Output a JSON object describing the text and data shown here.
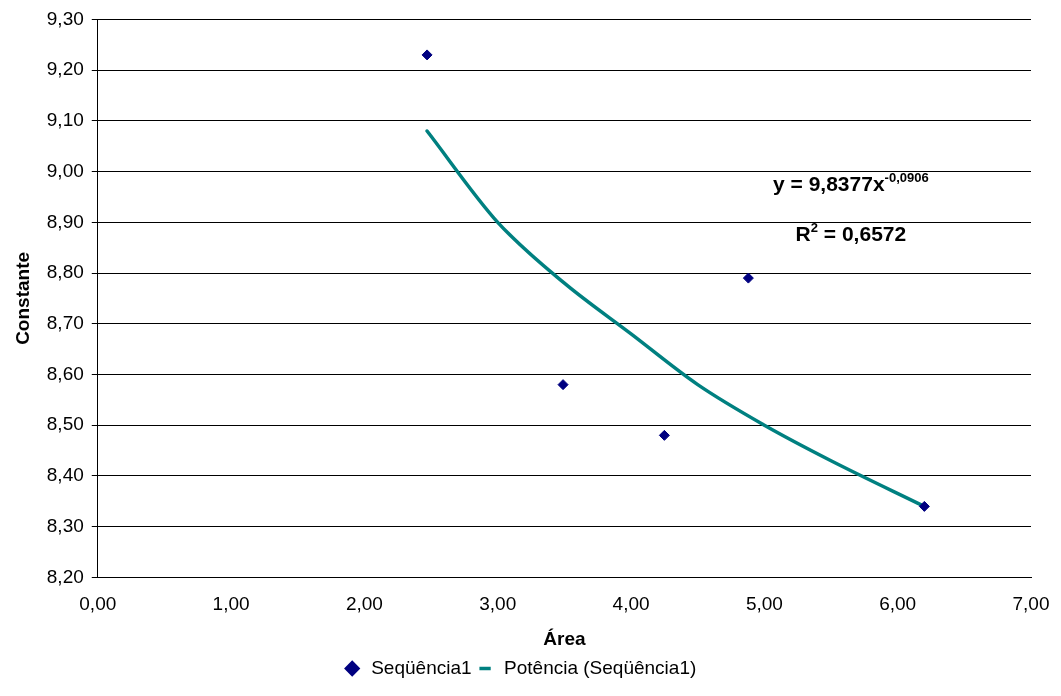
{
  "chart_data": {
    "type": "scatter",
    "xlabel": "Área",
    "ylabel": "Constante",
    "xlim": [
      0,
      7
    ],
    "ylim": [
      8.2,
      9.3
    ],
    "xticks": [
      {
        "value": 0,
        "label": "0,00"
      },
      {
        "value": 1,
        "label": "1,00"
      },
      {
        "value": 2,
        "label": "2,00"
      },
      {
        "value": 3,
        "label": "3,00"
      },
      {
        "value": 4,
        "label": "4,00"
      },
      {
        "value": 5,
        "label": "5,00"
      },
      {
        "value": 6,
        "label": "6,00"
      },
      {
        "value": 7,
        "label": "7,00"
      }
    ],
    "yticks": [
      {
        "value": 8.2,
        "label": "8,20"
      },
      {
        "value": 8.3,
        "label": "8,30"
      },
      {
        "value": 8.4,
        "label": "8,40"
      },
      {
        "value": 8.5,
        "label": "8,50"
      },
      {
        "value": 8.6,
        "label": "8,60"
      },
      {
        "value": 8.7,
        "label": "8,70"
      },
      {
        "value": 8.8,
        "label": "8,80"
      },
      {
        "value": 8.9,
        "label": "8,90"
      },
      {
        "value": 9.0,
        "label": "9,00"
      },
      {
        "value": 9.1,
        "label": "9,10"
      },
      {
        "value": 9.2,
        "label": "9,20"
      },
      {
        "value": 9.3,
        "label": "9,30"
      }
    ],
    "grid": "y",
    "legend": "bottom",
    "marker": "diamond",
    "series": [
      {
        "name": "Seqüência1",
        "type": "scatter",
        "color": "#000080",
        "x": [
          2.47,
          3.49,
          4.25,
          4.88,
          6.2
        ],
        "values": [
          9.23,
          8.58,
          8.48,
          8.79,
          8.34
        ]
      },
      {
        "name": "Potência (Seqüência1)",
        "type": "line",
        "color": "#008080",
        "marker": "none",
        "x": [
          2.47,
          3,
          3.5,
          4,
          4.5,
          5,
          5.5,
          6.2
        ],
        "values": [
          9.08,
          8.9,
          8.78,
          8.68,
          8.58,
          8.5,
          8.43,
          8.34
        ]
      }
    ],
    "annotations": [
      "y = 9,8377x$^{-0,0906}$",
      "R$^{2}$ = 0,6572"
    ]
  }
}
